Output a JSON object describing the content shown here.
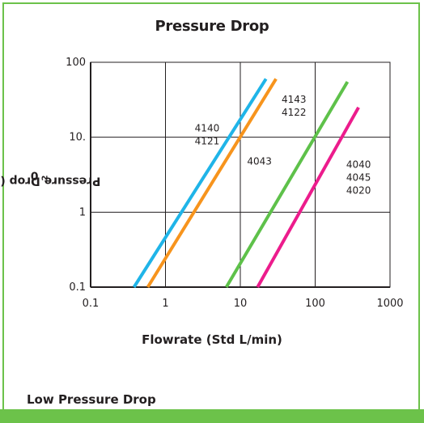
{
  "chart_data": {
    "type": "line",
    "title": "Pressure Drop",
    "xlabel": "Flowrate (Std L/min)",
    "ylabel": "Pressure Drop (cm H",
    "ylabel_sub": "2",
    "ylabel_end": "0",
    "x_scale": "log",
    "y_scale": "log",
    "xlim": [
      0.1,
      1000
    ],
    "ylim": [
      0.1,
      100
    ],
    "x_ticks": [
      "0.1",
      "1",
      "10",
      "100",
      "1000"
    ],
    "y_ticks": [
      "0.1",
      "1",
      "10.",
      "100"
    ],
    "grid": true,
    "series": [
      {
        "color": "#1fb4e8",
        "x": [
          0.38,
          22
        ],
        "y": [
          0.1,
          60
        ]
      },
      {
        "color": "#f7941d",
        "x": [
          0.58,
          30
        ],
        "y": [
          0.1,
          60
        ]
      },
      {
        "color": "#5ec14a",
        "x": [
          6.5,
          270
        ],
        "y": [
          0.1,
          55
        ]
      },
      {
        "color": "#ec1c8c",
        "x": [
          17,
          380
        ],
        "y": [
          0.1,
          25
        ]
      }
    ],
    "annotations": [
      {
        "lines": [
          "4140",
          "4121"
        ],
        "x": 3.6,
        "y": 12
      },
      {
        "lines": [
          "4143",
          "4122"
        ],
        "x": 52,
        "y": 29
      },
      {
        "lines": [
          "4043"
        ],
        "x": 18,
        "y": 4.3
      },
      {
        "lines": [
          "4040",
          "4045",
          "4020"
        ],
        "x": 380,
        "y": 3.9
      }
    ]
  },
  "footer": {
    "section_heading": "Low Pressure Drop"
  },
  "colors": {
    "border": "#6cc24a",
    "grid": "#231f20"
  }
}
